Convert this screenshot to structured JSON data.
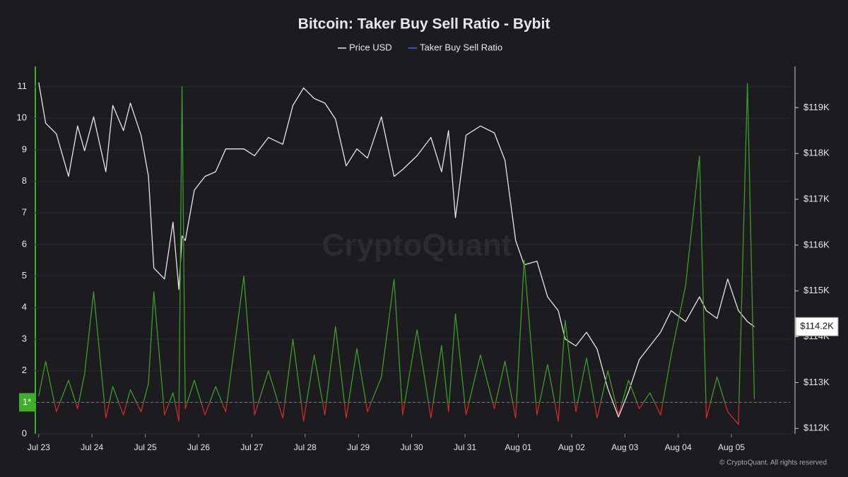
{
  "chart_data": {
    "type": "line",
    "title": "Bitcoin: Taker Buy Sell Ratio - Bybit",
    "watermark": "CryptoQuant",
    "footer": "© CryptoQuant. All rights reserved",
    "x": [
      0,
      0.13,
      0.33,
      0.56,
      0.73,
      0.86,
      1.03,
      1.26,
      1.39,
      1.59,
      1.72,
      1.92,
      2.06,
      2.16,
      2.36,
      2.52,
      2.63,
      2.69,
      2.75,
      2.92,
      3.12,
      3.32,
      3.51,
      3.85,
      4.05,
      4.31,
      4.58,
      4.77,
      4.97,
      5.17,
      5.37,
      5.57,
      5.77,
      5.97,
      6.17,
      6.43,
      6.67,
      6.83,
      7.1,
      7.36,
      7.56,
      7.69,
      7.82,
      8.02,
      8.29,
      8.55,
      8.75,
      8.95,
      9.11,
      9.35,
      9.55,
      9.75,
      9.88,
      10.08,
      10.28,
      10.48,
      10.68,
      10.88,
      11.07,
      11.27,
      11.47,
      11.67,
      11.87,
      12.14,
      12.4,
      12.53,
      12.73,
      12.93,
      13.13,
      13.3,
      13.43
    ],
    "xlim": [
      -0.13,
      14.1
    ],
    "xticks": [
      {
        "value": 0,
        "label": "Jul 23"
      },
      {
        "value": 1,
        "label": "Jul 24"
      },
      {
        "value": 2,
        "label": "Jul 25"
      },
      {
        "value": 3,
        "label": "Jul 26"
      },
      {
        "value": 4,
        "label": "Jul 27"
      },
      {
        "value": 5,
        "label": "Jul 28"
      },
      {
        "value": 6,
        "label": "Jul 29"
      },
      {
        "value": 7,
        "label": "Jul 30"
      },
      {
        "value": 8,
        "label": "Jul 31"
      },
      {
        "value": 9,
        "label": "Aug 01"
      },
      {
        "value": 10,
        "label": "Aug 02"
      },
      {
        "value": 11,
        "label": "Aug 03"
      },
      {
        "value": 12,
        "label": "Aug 04"
      },
      {
        "value": 13,
        "label": "Aug 05"
      }
    ],
    "ylim": [
      0,
      11.64
    ],
    "yticks": [
      0,
      1,
      2,
      3,
      4,
      5,
      6,
      7,
      8,
      9,
      10,
      11
    ],
    "y2lim": [
      111.88,
      119.9
    ],
    "y2ticks": [
      {
        "value": 112,
        "label": "$112K"
      },
      {
        "value": 113,
        "label": "$113K"
      },
      {
        "value": 114,
        "label": "$114K"
      },
      {
        "value": 115,
        "label": "$115K"
      },
      {
        "value": 116,
        "label": "$116K"
      },
      {
        "value": 117,
        "label": "$117K"
      },
      {
        "value": 118,
        "label": "$118K"
      },
      {
        "value": 119,
        "label": "$119K"
      }
    ],
    "threshold": {
      "value": 1,
      "label": "1*"
    },
    "grid": true,
    "series": [
      {
        "name": "Price USD",
        "color": "#e6e6e6",
        "axis": "y2",
        "last_label": "$114.2K",
        "values": [
          119.55,
          118.66,
          118.43,
          117.5,
          118.6,
          118.06,
          118.8,
          117.6,
          119.05,
          118.5,
          119.1,
          118.4,
          117.5,
          115.5,
          115.26,
          116.5,
          115.03,
          116.2,
          116.1,
          117.2,
          117.5,
          117.6,
          118.1,
          118.1,
          117.95,
          118.35,
          118.2,
          119.05,
          119.43,
          119.2,
          119.1,
          118.75,
          117.73,
          118.1,
          117.9,
          118.8,
          117.5,
          117.65,
          117.95,
          118.35,
          117.6,
          118.5,
          116.6,
          118.4,
          118.6,
          118.45,
          117.85,
          116.1,
          115.57,
          115.65,
          114.87,
          114.57,
          113.95,
          113.8,
          114.1,
          113.73,
          112.87,
          112.25,
          112.8,
          113.5,
          113.8,
          114.1,
          114.57,
          114.33,
          114.87,
          114.57,
          114.4,
          115.26,
          114.57,
          114.33,
          114.22
        ]
      },
      {
        "name": "Taker Buy Sell Ratio",
        "color": "#5060ff",
        "above_color": "#3d9a2c",
        "below_color": "#c2302a",
        "values": [
          1.2,
          2.3,
          0.7,
          1.7,
          0.8,
          1.9,
          4.5,
          0.5,
          1.5,
          0.6,
          1.4,
          0.7,
          1.6,
          4.5,
          0.6,
          1.3,
          0.4,
          11.0,
          0.8,
          1.7,
          0.6,
          1.5,
          0.7,
          5.0,
          0.6,
          2.0,
          0.5,
          3.0,
          0.4,
          2.5,
          0.6,
          3.4,
          0.5,
          2.7,
          0.7,
          1.8,
          4.9,
          0.6,
          3.3,
          0.5,
          2.8,
          0.7,
          3.8,
          0.6,
          2.5,
          0.8,
          2.3,
          0.5,
          5.5,
          0.6,
          2.2,
          0.4,
          3.6,
          0.7,
          2.4,
          0.5,
          2.0,
          0.6,
          1.7,
          0.8,
          1.3,
          0.6,
          2.5,
          4.7,
          8.8,
          0.5,
          1.8,
          0.7,
          0.3,
          11.1,
          1.1
        ]
      }
    ]
  }
}
